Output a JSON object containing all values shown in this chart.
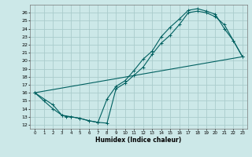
{
  "xlabel": "Humidex (Indice chaleur)",
  "bg_color": "#cce8e8",
  "grid_color": "#aacccc",
  "line_color": "#006060",
  "xlim": [
    -0.5,
    23.5
  ],
  "ylim": [
    11.5,
    27
  ],
  "yticks": [
    12,
    13,
    14,
    15,
    16,
    17,
    18,
    19,
    20,
    21,
    22,
    23,
    24,
    25,
    26
  ],
  "xticks": [
    0,
    1,
    2,
    3,
    4,
    5,
    6,
    7,
    8,
    9,
    10,
    11,
    12,
    13,
    14,
    15,
    16,
    17,
    18,
    19,
    20,
    21,
    22,
    23
  ],
  "curve1_x": [
    0,
    1,
    2,
    3,
    3.5,
    4,
    5,
    6,
    7,
    8,
    9,
    10,
    11,
    12,
    13,
    14,
    15,
    16,
    17,
    18,
    19,
    20,
    21,
    22,
    23
  ],
  "curve1_y": [
    16.0,
    15.0,
    14.0,
    13.2,
    13.0,
    13.0,
    12.8,
    12.5,
    12.3,
    12.2,
    16.5,
    17.2,
    18.2,
    19.2,
    20.8,
    22.2,
    23.2,
    24.5,
    26.0,
    26.2,
    26.0,
    25.5,
    24.5,
    22.5,
    20.5
  ],
  "curve2_x": [
    0,
    2,
    3,
    4,
    5,
    6,
    7,
    8,
    9,
    10,
    11,
    12,
    13,
    14,
    15,
    16,
    17,
    18,
    19,
    20,
    21,
    22,
    23
  ],
  "curve2_y": [
    16.0,
    14.5,
    13.2,
    13.0,
    12.8,
    12.5,
    12.3,
    15.2,
    16.8,
    17.5,
    18.8,
    20.2,
    21.2,
    23.0,
    24.2,
    25.2,
    26.3,
    26.5,
    26.2,
    25.8,
    24.0,
    22.5,
    20.5
  ],
  "curve3_x": [
    0,
    23
  ],
  "curve3_y": [
    16.0,
    20.5
  ]
}
